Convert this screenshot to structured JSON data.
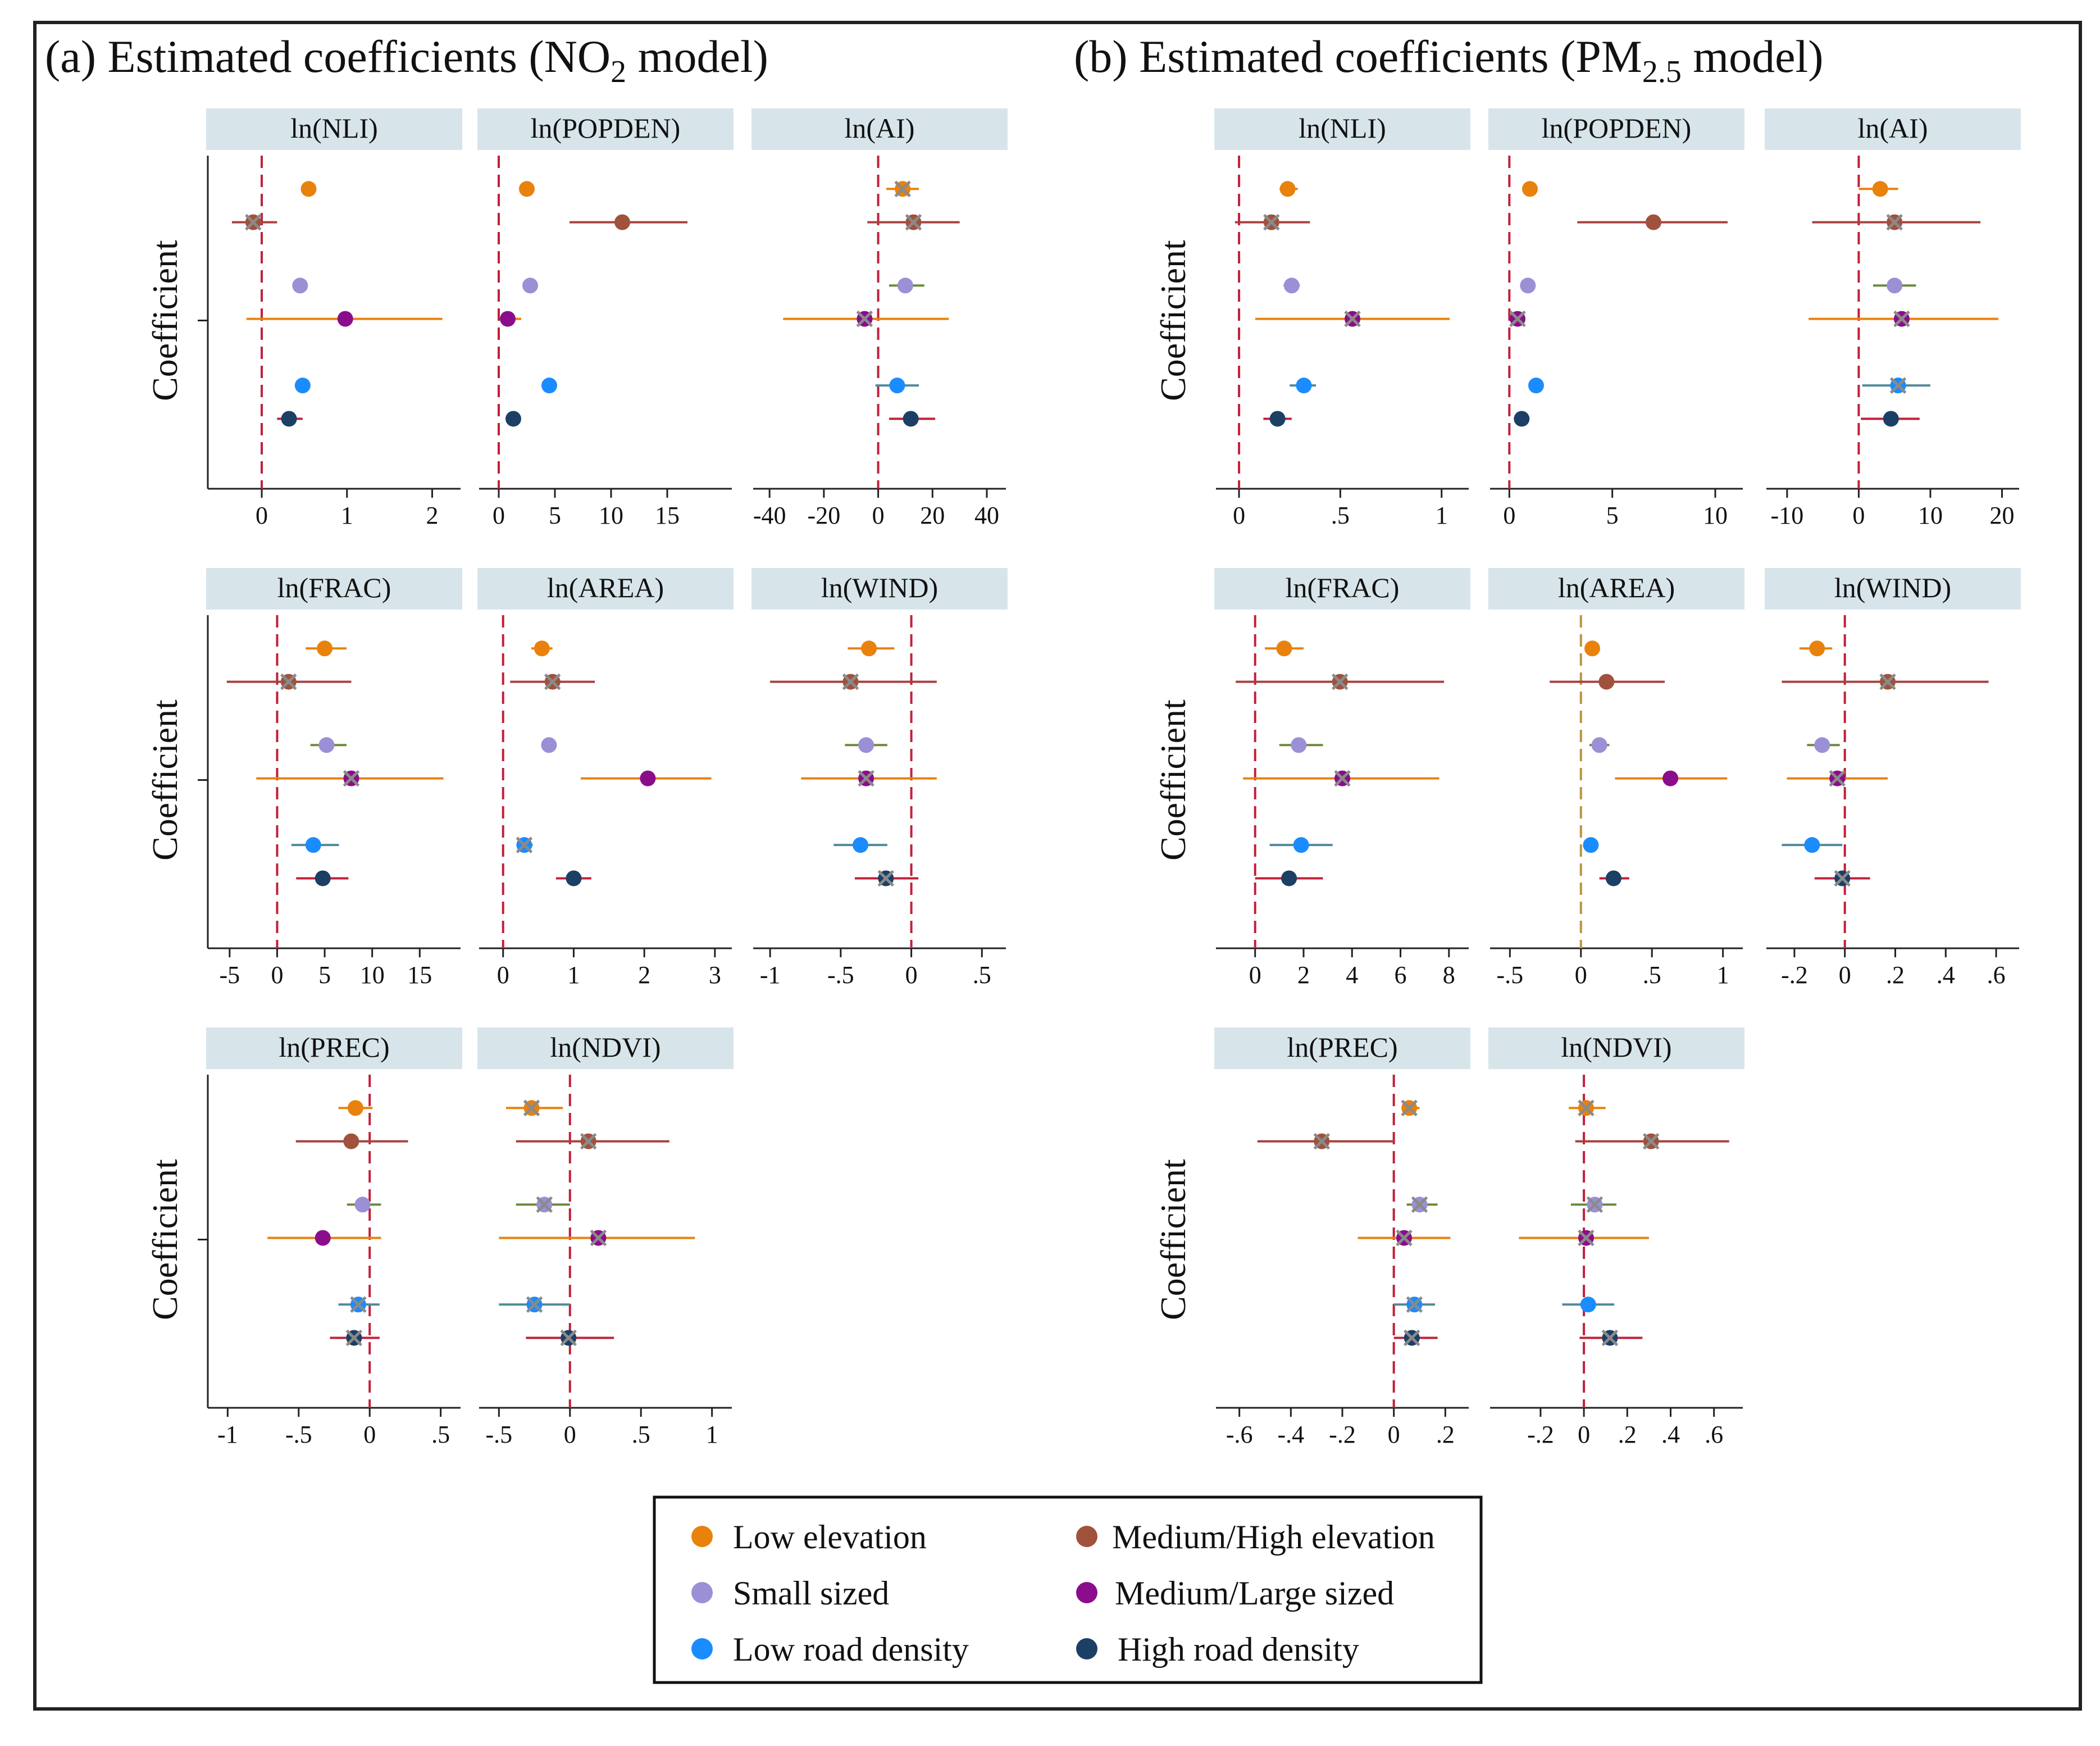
{
  "chart_data": [
    {
      "type": "scatter",
      "subtype": "coefficient-plot",
      "title": "(a) Estimated coefficients (NO",
      "title_sub": "2",
      "title_end": " model)",
      "ylabel": "Coefficient",
      "groups": [
        "Low elevation",
        "Medium/High elevation",
        "Small sized",
        "Medium/Large sized",
        "Low road density",
        "High road density"
      ],
      "panels": [
        {
          "label": "ln(NLI)",
          "xlim": [
            -0.6,
            2.3
          ],
          "ticks": [
            0,
            1,
            2
          ],
          "tick_labels": [
            "0",
            "1",
            "2"
          ],
          "ref_color": "#c0203a",
          "estimates": [
            0.55,
            -0.1,
            0.45,
            0.98,
            0.48,
            0.32
          ],
          "ci_low": [
            0.48,
            -0.35,
            0.38,
            -0.18,
            0.4,
            0.18
          ],
          "ci_high": [
            0.62,
            0.18,
            0.52,
            2.12,
            0.56,
            0.48
          ],
          "insignificant": [
            false,
            true,
            false,
            false,
            false,
            false
          ]
        },
        {
          "label": "ln(POPDEN)",
          "xlim": [
            -1.5,
            20.5
          ],
          "ticks": [
            0,
            5,
            10,
            15
          ],
          "tick_labels": [
            "0",
            "5",
            "10",
            "15"
          ],
          "ref_color": "#c0203a",
          "estimates": [
            2.5,
            11.0,
            2.8,
            0.8,
            4.5,
            1.3
          ],
          "ci_low": [
            2.4,
            6.3,
            2.7,
            0.3,
            4.2,
            1.2
          ],
          "ci_high": [
            2.6,
            16.8,
            2.9,
            2.0,
            4.8,
            1.4
          ],
          "insignificant": [
            false,
            false,
            false,
            false,
            false,
            false
          ]
        },
        {
          "label": "ln(AI)",
          "xlim": [
            -45,
            46
          ],
          "ticks": [
            -40,
            -20,
            0,
            20,
            40
          ],
          "tick_labels": [
            "-40",
            "-20",
            "0",
            "20",
            "40"
          ],
          "ref_color": "#c0203a",
          "estimates": [
            9,
            13,
            10,
            -5,
            7,
            12
          ],
          "ci_low": [
            3,
            -4,
            4,
            -35,
            -1,
            4
          ],
          "ci_high": [
            15,
            30,
            17,
            26,
            15,
            21
          ],
          "insignificant": [
            true,
            true,
            false,
            true,
            false,
            false
          ]
        },
        {
          "label": "ln(FRAC)",
          "xlim": [
            -7,
            19
          ],
          "ticks": [
            -5,
            0,
            5,
            10,
            15
          ],
          "tick_labels": [
            "-5",
            "0",
            "5",
            "10",
            "15"
          ],
          "ref_color": "#c0203a",
          "estimates": [
            5,
            1.2,
            5.2,
            7.8,
            3.8,
            4.8
          ],
          "ci_low": [
            3,
            -5.3,
            3.5,
            -2.2,
            1.5,
            2
          ],
          "ci_high": [
            7.3,
            7.8,
            7.3,
            17.5,
            6.5,
            7.5
          ],
          "insignificant": [
            false,
            true,
            false,
            true,
            false,
            false
          ]
        },
        {
          "label": "ln(AREA)",
          "xlim": [
            -0.3,
            3.2
          ],
          "ticks": [
            0,
            1,
            2,
            3
          ],
          "tick_labels": [
            "0",
            "1",
            "2",
            "3"
          ],
          "ref_color": "#c0203a",
          "estimates": [
            0.55,
            0.7,
            0.65,
            2.05,
            0.3,
            1.0
          ],
          "ci_low": [
            0.4,
            0.1,
            0.55,
            1.1,
            0.2,
            0.75
          ],
          "ci_high": [
            0.7,
            1.3,
            0.75,
            2.95,
            0.42,
            1.25
          ],
          "insignificant": [
            false,
            true,
            false,
            false,
            true,
            false
          ]
        },
        {
          "label": "ln(WIND)",
          "xlim": [
            -1.1,
            0.65
          ],
          "ticks": [
            -1,
            -0.5,
            0,
            0.5
          ],
          "tick_labels": [
            "-1",
            "-.5",
            "0",
            ".5"
          ],
          "ref_color": "#c0203a",
          "estimates": [
            -0.3,
            -0.43,
            -0.32,
            -0.32,
            -0.36,
            -0.18
          ],
          "ci_low": [
            -0.45,
            -1.0,
            -0.47,
            -0.78,
            -0.55,
            -0.4
          ],
          "ci_high": [
            -0.12,
            0.18,
            -0.17,
            0.18,
            -0.17,
            0.05
          ],
          "insignificant": [
            false,
            true,
            false,
            true,
            false,
            true
          ]
        },
        {
          "label": "ln(PREC)",
          "xlim": [
            -1.12,
            0.62
          ],
          "ticks": [
            -1,
            -0.5,
            0,
            0.5
          ],
          "tick_labels": [
            "-1",
            "-.5",
            "0",
            ".5"
          ],
          "ref_color": "#c0203a",
          "estimates": [
            -0.1,
            -0.13,
            -0.05,
            -0.33,
            -0.08,
            -0.11
          ],
          "ci_low": [
            -0.22,
            -0.52,
            -0.16,
            -0.72,
            -0.22,
            -0.28
          ],
          "ci_high": [
            0.02,
            0.27,
            0.08,
            0.08,
            0.07,
            0.07
          ],
          "insignificant": [
            false,
            false,
            false,
            false,
            true,
            true
          ]
        },
        {
          "label": "ln(NDVI)",
          "xlim": [
            -0.62,
            1.12
          ],
          "ticks": [
            -0.5,
            0,
            0.5,
            1
          ],
          "tick_labels": [
            "-.5",
            "0",
            ".5",
            "1"
          ],
          "ref_color": "#c0203a",
          "estimates": [
            -0.27,
            0.13,
            -0.18,
            0.2,
            -0.25,
            -0.01
          ],
          "ci_low": [
            -0.45,
            -0.38,
            -0.38,
            -0.5,
            -0.5,
            -0.31
          ],
          "ci_high": [
            -0.05,
            0.7,
            0.0,
            0.88,
            0.0,
            0.31
          ],
          "insignificant": [
            true,
            true,
            true,
            true,
            true,
            true
          ]
        }
      ]
    },
    {
      "type": "scatter",
      "subtype": "coefficient-plot",
      "title": "(b) Estimated coefficients (PM",
      "title_sub": "2.5",
      "title_end": " model)",
      "ylabel": "Coefficient",
      "groups": [
        "Low elevation",
        "Medium/High elevation",
        "Small sized",
        "Medium/Large sized",
        "Low road density",
        "High road density"
      ],
      "panels": [
        {
          "label": "ln(NLI)",
          "xlim": [
            -0.1,
            1.12
          ],
          "ticks": [
            0,
            0.5,
            1
          ],
          "tick_labels": [
            "0",
            ".5",
            "1"
          ],
          "ref_color": "#c0203a",
          "estimates": [
            0.24,
            0.16,
            0.26,
            0.56,
            0.32,
            0.19
          ],
          "ci_low": [
            0.2,
            -0.02,
            0.22,
            0.08,
            0.25,
            0.12
          ],
          "ci_high": [
            0.29,
            0.35,
            0.3,
            1.04,
            0.38,
            0.26
          ],
          "insignificant": [
            false,
            true,
            false,
            true,
            false,
            false
          ]
        },
        {
          "label": "ln(POPDEN)",
          "xlim": [
            -0.8,
            11.2
          ],
          "ticks": [
            0,
            5,
            10
          ],
          "tick_labels": [
            "0",
            "5",
            "10"
          ],
          "ref_color": "#c0203a",
          "estimates": [
            1.0,
            7.0,
            0.9,
            0.4,
            1.3,
            0.6
          ],
          "ci_low": [
            0.95,
            3.3,
            0.85,
            0.1,
            1.2,
            0.5
          ],
          "ci_high": [
            1.05,
            10.6,
            0.95,
            0.7,
            1.4,
            0.7
          ],
          "insignificant": [
            false,
            false,
            false,
            true,
            false,
            false
          ]
        },
        {
          "label": "ln(AI)",
          "xlim": [
            -12.5,
            22
          ],
          "ticks": [
            -10,
            0,
            10,
            20
          ],
          "tick_labels": [
            "-10",
            "0",
            "10",
            "20"
          ],
          "ref_color": "#c0203a",
          "estimates": [
            3,
            5,
            5,
            6,
            5.5,
            4.5
          ],
          "ci_low": [
            0,
            -6.5,
            2,
            -7,
            0.5,
            0.3
          ],
          "ci_high": [
            5.5,
            17,
            8,
            19.5,
            10,
            8.5
          ],
          "insignificant": [
            false,
            true,
            false,
            true,
            true,
            false
          ]
        },
        {
          "label": "ln(FRAC)",
          "xlim": [
            -1.5,
            8.7
          ],
          "ticks": [
            0,
            2,
            4,
            6,
            8
          ],
          "tick_labels": [
            "0",
            "2",
            "4",
            "6",
            "8"
          ],
          "ref_color": "#c0203a",
          "estimates": [
            1.2,
            3.5,
            1.8,
            3.6,
            1.9,
            1.4
          ],
          "ci_low": [
            0.4,
            -0.8,
            1.0,
            -0.5,
            0.6,
            0.0
          ],
          "ci_high": [
            2.0,
            7.8,
            2.8,
            7.6,
            3.2,
            2.8
          ],
          "insignificant": [
            false,
            true,
            false,
            true,
            false,
            false
          ]
        },
        {
          "label": "ln(AREA)",
          "xlim": [
            -0.62,
            1.12
          ],
          "ticks": [
            -0.5,
            0,
            0.5,
            1
          ],
          "tick_labels": [
            "-.5",
            "0",
            ".5",
            "1"
          ],
          "ref_color": "#b8963c",
          "estimates": [
            0.08,
            0.18,
            0.13,
            0.63,
            0.07,
            0.23
          ],
          "ci_low": [
            0.04,
            -0.22,
            0.06,
            0.24,
            0.02,
            0.13
          ],
          "ci_high": [
            0.12,
            0.59,
            0.2,
            1.03,
            0.12,
            0.34
          ],
          "insignificant": [
            false,
            false,
            false,
            false,
            false,
            false
          ]
        },
        {
          "label": "ln(WIND)",
          "xlim": [
            -0.3,
            0.68
          ],
          "ticks": [
            -0.2,
            0,
            0.2,
            0.4,
            0.6
          ],
          "tick_labels": [
            "-.2",
            "0",
            ".2",
            ".4",
            ".6"
          ],
          "ref_color": "#c0203a",
          "estimates": [
            -0.11,
            0.17,
            -0.09,
            -0.03,
            -0.13,
            -0.01
          ],
          "ci_low": [
            -0.18,
            -0.25,
            -0.15,
            -0.23,
            -0.25,
            -0.12
          ],
          "ci_high": [
            -0.05,
            0.57,
            -0.02,
            0.17,
            -0.01,
            0.1
          ],
          "insignificant": [
            false,
            true,
            false,
            true,
            false,
            true
          ]
        },
        {
          "label": "ln(PREC)",
          "xlim": [
            -0.68,
            0.28
          ],
          "ticks": [
            -0.6,
            -0.4,
            -0.2,
            0,
            0.2
          ],
          "tick_labels": [
            "-.6",
            "-.4",
            "-.2",
            "0",
            ".2"
          ],
          "ref_color": "#c0203a",
          "estimates": [
            0.06,
            -0.28,
            0.1,
            0.04,
            0.08,
            0.07
          ],
          "ci_low": [
            0.03,
            -0.53,
            0.05,
            -0.14,
            0.0,
            0.0
          ],
          "ci_high": [
            0.1,
            0.0,
            0.17,
            0.22,
            0.16,
            0.17
          ],
          "insignificant": [
            true,
            true,
            true,
            true,
            true,
            true
          ]
        },
        {
          "label": "ln(NDVI)",
          "xlim": [
            -0.42,
            0.72
          ],
          "ticks": [
            -0.2,
            0,
            0.2,
            0.4,
            0.6
          ],
          "tick_labels": [
            "-.2",
            "0",
            ".2",
            ".4",
            ".6"
          ],
          "ref_color": "#c0203a",
          "estimates": [
            0.01,
            0.31,
            0.05,
            0.01,
            0.02,
            0.12
          ],
          "ci_low": [
            -0.07,
            -0.04,
            -0.06,
            -0.3,
            -0.1,
            -0.02
          ],
          "ci_high": [
            0.1,
            0.67,
            0.15,
            0.3,
            0.14,
            0.27
          ],
          "insignificant": [
            true,
            true,
            true,
            true,
            false,
            true
          ]
        }
      ]
    }
  ],
  "legend": {
    "items": [
      {
        "label": "Low  elevation",
        "color": "#e8820c"
      },
      {
        "label": "Medium/High elevation",
        "color": "#a0523c"
      },
      {
        "label": "Small sized",
        "color": "#9b8fd6"
      },
      {
        "label": "Medium/Large sized",
        "color": "#8b0d8b"
      },
      {
        "label": "Low road density",
        "color": "#1a8cff"
      },
      {
        "label": "High road density",
        "color": "#1c3f66"
      }
    ]
  },
  "colors": {
    "strip": "#d7e5eb",
    "marker_x": "#8a8a8a",
    "ci": [
      "#e8820c",
      "#a84040",
      "#6b8a3a",
      "#e8820c",
      "#4f8a9a",
      "#c0203a"
    ],
    "hi_ci_ln_nli": [
      "#1c3f66",
      "#a84040",
      "#6b8a3a",
      "#e8820c",
      "#4f8a9a",
      "#c0203a"
    ]
  }
}
